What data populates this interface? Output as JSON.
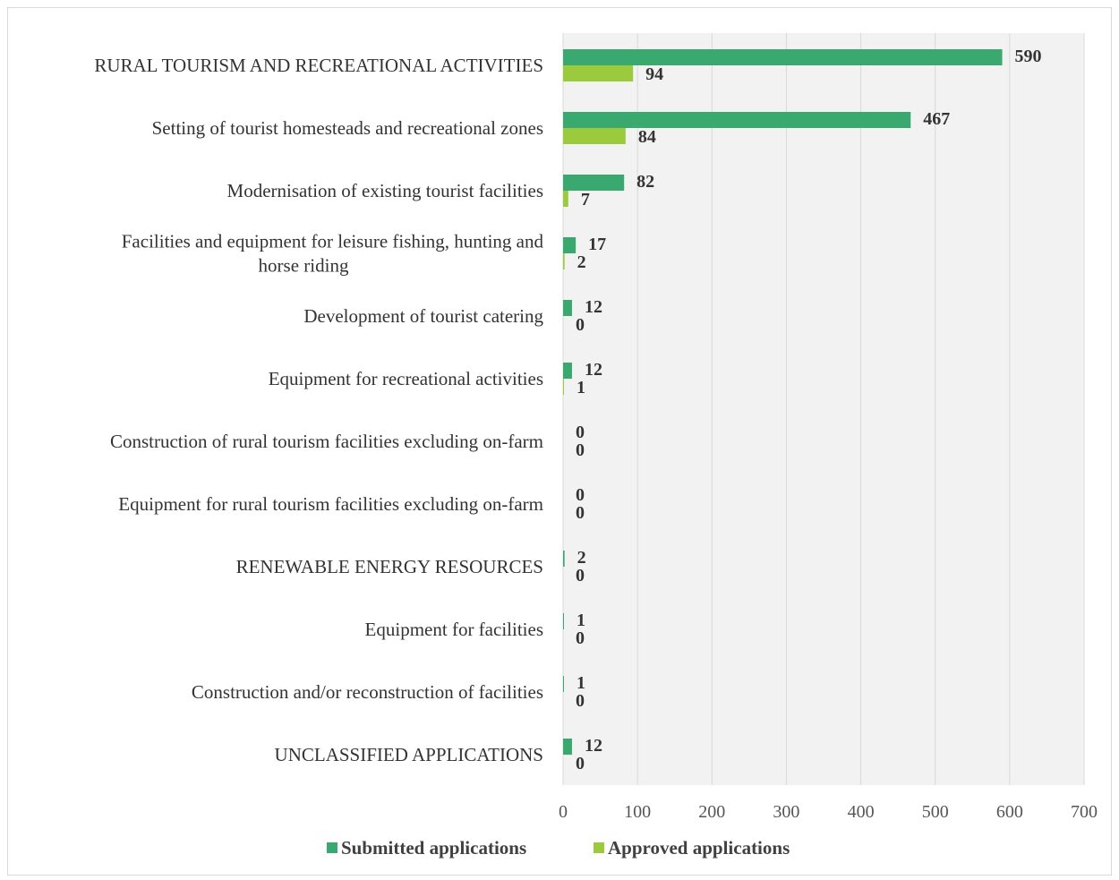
{
  "chart_data": {
    "type": "bar",
    "orientation": "horizontal",
    "categories": [
      "RURAL TOURISM AND RECREATIONAL ACTIVITIES",
      "Setting of tourist homesteads and recreational zones",
      "Modernisation of existing tourist facilities",
      "Facilities and equipment for leisure fishing, hunting and horse riding",
      "Development of tourist catering",
      "Equipment for recreational activities",
      "Construction of rural tourism facilities excluding on-farm",
      "Equipment for rural tourism facilities excluding on-farm",
      "RENEWABLE ENERGY RESOURCES",
      "Equipment for facilities",
      "Construction and/or reconstruction of facilities",
      "UNCLASSIFIED APPLICATIONS"
    ],
    "category_lines": [
      [
        "RURAL TOURISM AND RECREATIONAL ACTIVITIES"
      ],
      [
        "Setting of tourist homesteads and recreational zones"
      ],
      [
        "Modernisation of existing tourist facilities"
      ],
      [
        "Facilities and equipment for leisure fishing, hunting and",
        "horse riding"
      ],
      [
        "Development of tourist catering"
      ],
      [
        "Equipment for recreational activities"
      ],
      [
        "Construction of rural tourism facilities excluding on-farm"
      ],
      [
        "Equipment for rural tourism facilities excluding on-farm"
      ],
      [
        "RENEWABLE ENERGY RESOURCES"
      ],
      [
        "Equipment for facilities"
      ],
      [
        "Construction and/or reconstruction of facilities"
      ],
      [
        "UNCLASSIFIED APPLICATIONS"
      ]
    ],
    "series": [
      {
        "name": "Submitted applications",
        "color": "#3aa96f",
        "values": [
          590,
          467,
          82,
          17,
          12,
          12,
          0,
          0,
          2,
          1,
          1,
          12
        ]
      },
      {
        "name": "Approved applications",
        "color": "#9bcb3c",
        "values": [
          94,
          84,
          7,
          2,
          0,
          1,
          0,
          0,
          0,
          0,
          0,
          0
        ]
      }
    ],
    "xlim": [
      0,
      700
    ],
    "xticks": [
      0,
      100,
      200,
      300,
      400,
      500,
      600,
      700
    ],
    "grid": "vertical",
    "legend_position": "bottom",
    "plot_background": "#f2f2f2",
    "gridline_color": "#d9d9d9"
  }
}
